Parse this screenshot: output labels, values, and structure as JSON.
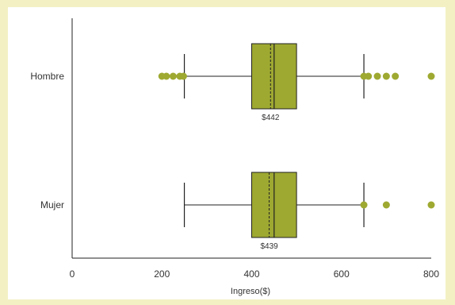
{
  "chart_data": {
    "type": "boxplot",
    "orientation": "horizontal",
    "xlabel": "Ingreso($)",
    "xlim": [
      0,
      800
    ],
    "xticks": [
      0,
      200,
      400,
      600,
      800
    ],
    "grid": false,
    "colors": {
      "box_fill": "#9ea931",
      "outlier": "#9ea931",
      "line": "#222222",
      "background": "#f3f1c4"
    },
    "series": [
      {
        "name": "Hombre",
        "whisker_low": 250,
        "q1": 400,
        "median": 450,
        "mean": 442,
        "q3": 500,
        "whisker_high": 650,
        "mean_label": "$442",
        "outliers": [
          200,
          210,
          225,
          240,
          248,
          650,
          660,
          680,
          700,
          720,
          800
        ]
      },
      {
        "name": "Mujer",
        "whisker_low": 250,
        "q1": 400,
        "median": 450,
        "mean": 439,
        "q3": 500,
        "whisker_high": 650,
        "mean_label": "$439",
        "outliers": [
          650,
          700,
          800
        ]
      }
    ]
  }
}
